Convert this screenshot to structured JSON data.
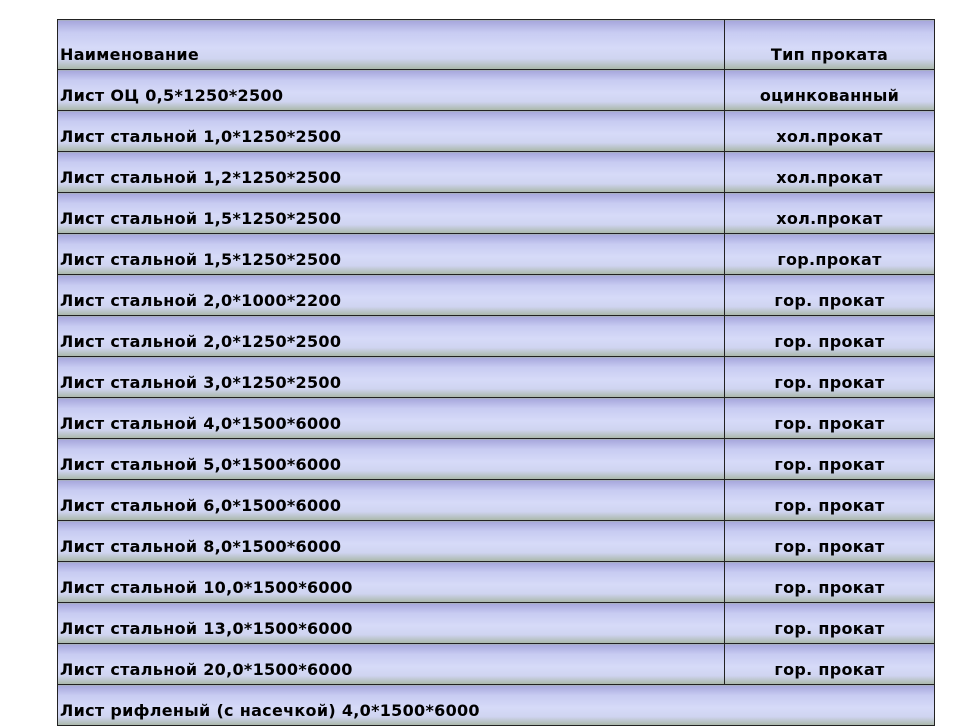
{
  "table": {
    "headers": {
      "name": "Наименование",
      "type": "Тип проката"
    },
    "rows": [
      {
        "name": "Лист ОЦ 0,5*1250*2500",
        "type": "оцинкованный"
      },
      {
        "name": "Лист стальной 1,0*1250*2500",
        "type": "хол.прокат"
      },
      {
        "name": "Лист стальной 1,2*1250*2500",
        "type": "хол.прокат"
      },
      {
        "name": "Лист стальной 1,5*1250*2500",
        "type": "хол.прокат"
      },
      {
        "name": "Лист стальной 1,5*1250*2500",
        "type": "гор.прокат"
      },
      {
        "name": "Лист стальной 2,0*1000*2200",
        "type": "гор. прокат"
      },
      {
        "name": "Лист стальной 2,0*1250*2500",
        "type": "гор. прокат"
      },
      {
        "name": "Лист стальной 3,0*1250*2500",
        "type": "гор. прокат"
      },
      {
        "name": "Лист стальной 4,0*1500*6000",
        "type": "гор. прокат"
      },
      {
        "name": "Лист стальной 5,0*1500*6000",
        "type": "гор. прокат"
      },
      {
        "name": "Лист стальной 6,0*1500*6000",
        "type": "гор. прокат"
      },
      {
        "name": "Лист стальной 8,0*1500*6000",
        "type": "гор. прокат"
      },
      {
        "name": "Лист стальной 10,0*1500*6000",
        "type": "гор. прокат"
      },
      {
        "name": "Лист стальной 13,0*1500*6000",
        "type": "гор. прокат"
      },
      {
        "name": "Лист стальной 20,0*1500*6000",
        "type": "гор. прокат"
      }
    ],
    "last_row": "Лист рифленый (с насечкой) 4,0*1500*6000"
  }
}
